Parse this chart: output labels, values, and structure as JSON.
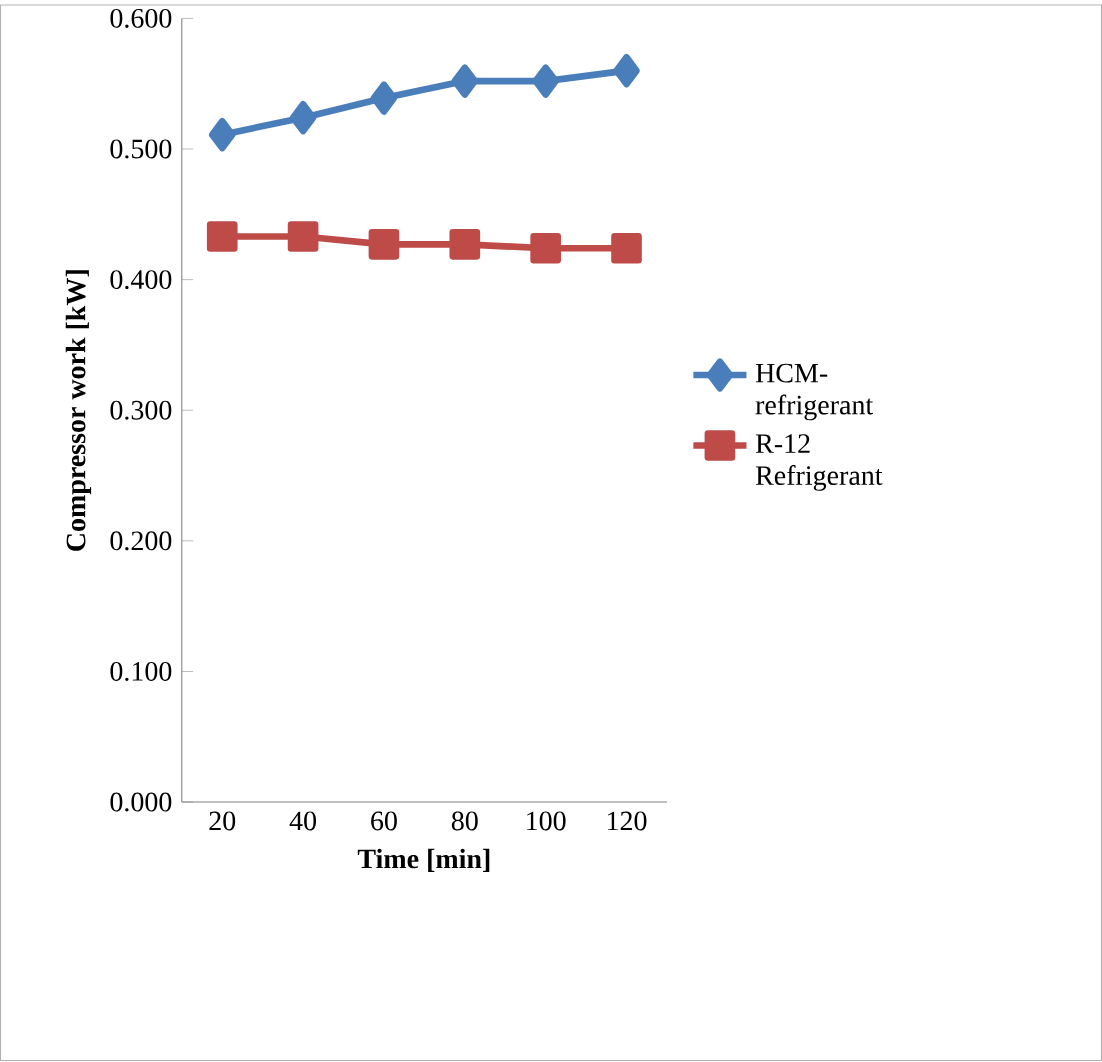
{
  "chart_data": {
    "type": "line",
    "xlabel": "Time [min]",
    "ylabel": "Compressor work  [kW]",
    "categories": [
      "20",
      "40",
      "60",
      "80",
      "100",
      "120"
    ],
    "ylim": [
      0,
      0.6
    ],
    "yticks": [
      {
        "value": 0,
        "label": "0.000"
      },
      {
        "value": 0.1,
        "label": "0.100"
      },
      {
        "value": 0.2,
        "label": "0.200"
      },
      {
        "value": 0.3,
        "label": "0.300"
      },
      {
        "value": 0.4,
        "label": "0.400"
      },
      {
        "value": 0.5,
        "label": "0.500"
      },
      {
        "value": 0.6,
        "label": "0.600"
      }
    ],
    "legend": "right",
    "grid": false,
    "series": [
      {
        "name": "HCM-refrigerant",
        "color": "#4a7ebb",
        "marker": "diamond",
        "values": [
          0.511,
          0.524,
          0.539,
          0.552,
          0.552,
          0.56
        ]
      },
      {
        "name": "R-12 Refrigerant",
        "color": "#be4b48",
        "marker": "square",
        "values": [
          0.433,
          0.433,
          0.427,
          0.427,
          0.424,
          0.424
        ]
      }
    ]
  }
}
